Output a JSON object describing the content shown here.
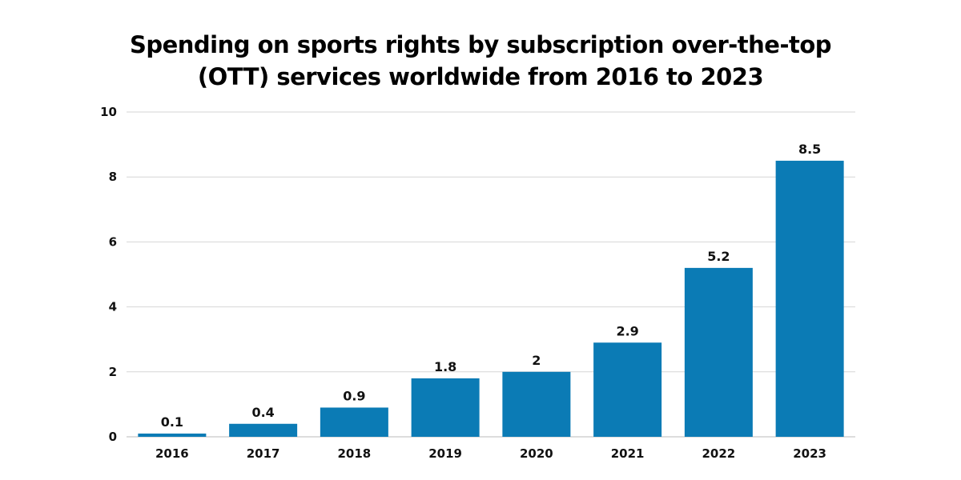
{
  "chart_data": {
    "type": "bar",
    "title_lines": [
      "Spending on sports rights by subscription over-the-top",
      "(OTT) services worldwide from 2016 to 2023"
    ],
    "categories": [
      "2016",
      "2017",
      "2018",
      "2019",
      "2020",
      "2021",
      "2022",
      "2023"
    ],
    "values": [
      0.1,
      0.4,
      0.9,
      1.8,
      2,
      2.9,
      5.2,
      8.5
    ],
    "data_labels": [
      "0.1",
      "0.4",
      "0.9",
      "1.8",
      "2",
      "2.9",
      "5.2",
      "8.5"
    ],
    "xlabel": "",
    "ylabel": "",
    "ylim": [
      0,
      10
    ],
    "yticks": [
      "0",
      "2",
      "4",
      "6",
      "8",
      "10"
    ],
    "grid": true,
    "bar_color": "#0b7bb5"
  }
}
